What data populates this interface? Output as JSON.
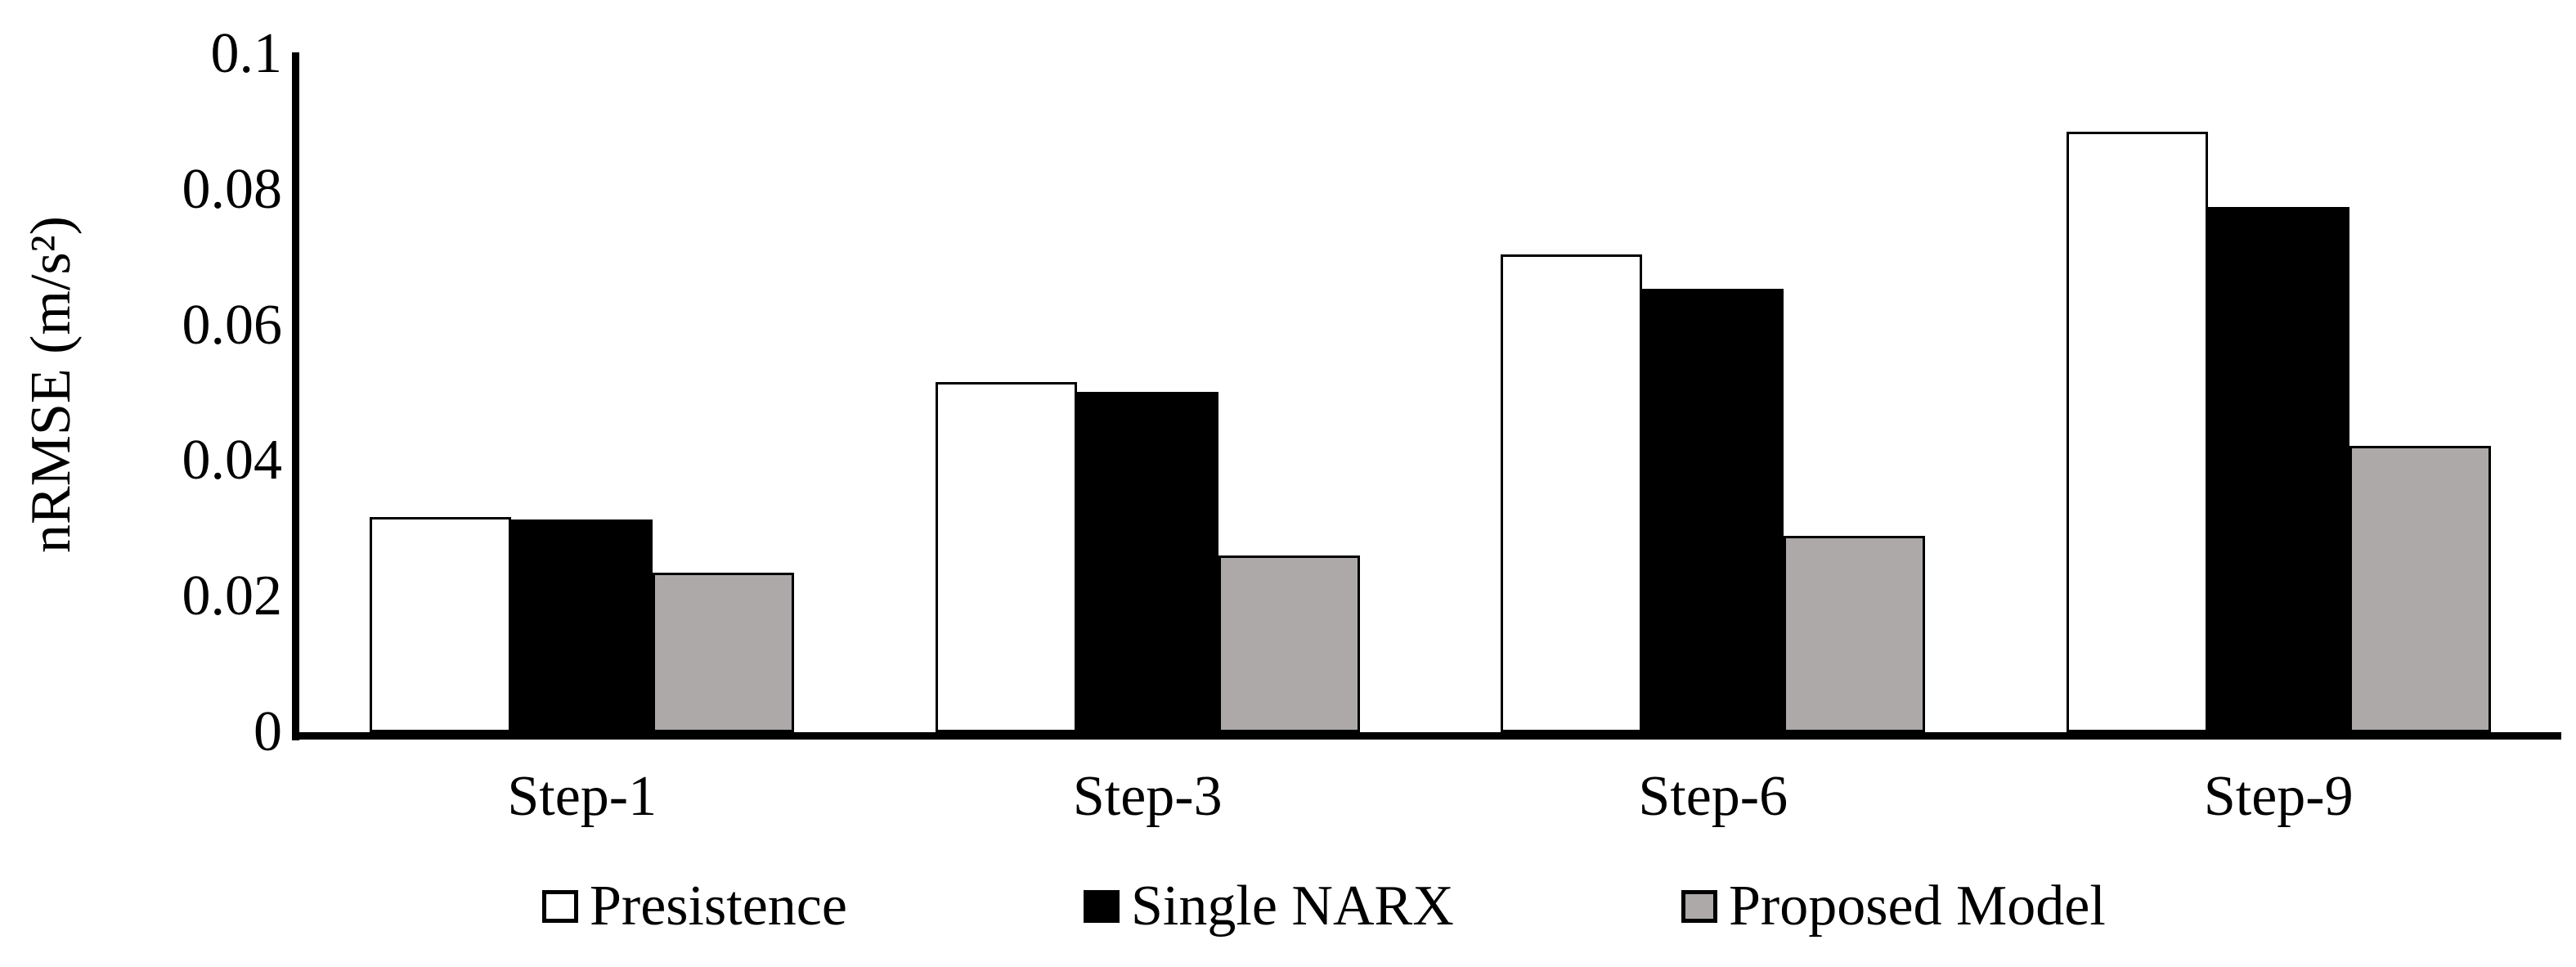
{
  "chart_data": {
    "type": "bar",
    "title": "",
    "ylabel": "nRMSE (m/s²)",
    "xlabel": "",
    "ylim": [
      0,
      0.1
    ],
    "yticks": [
      "0",
      "0.02",
      "0.04",
      "0.06",
      "0.08",
      "0.1"
    ],
    "categories": [
      "Step-1",
      "Step-3",
      "Step-6",
      "Step-9"
    ],
    "series": [
      {
        "name": "Presistence",
        "fill": "#FFFFFF",
        "border": "#000000",
        "values": [
          0.0317,
          0.0516,
          0.0705,
          0.0885
        ]
      },
      {
        "name": "Single NARX",
        "fill": "#000000",
        "border": "#000000",
        "values": [
          0.0314,
          0.0502,
          0.0654,
          0.0774
        ]
      },
      {
        "name": "Proposed Model",
        "fill": "#ACA9A8",
        "border": "#000000",
        "values": [
          0.0235,
          0.026,
          0.0289,
          0.0422
        ]
      }
    ],
    "grid": false,
    "legend_position": "bottom",
    "axis_color": "#000000",
    "background_color": "#FFFFFF"
  }
}
